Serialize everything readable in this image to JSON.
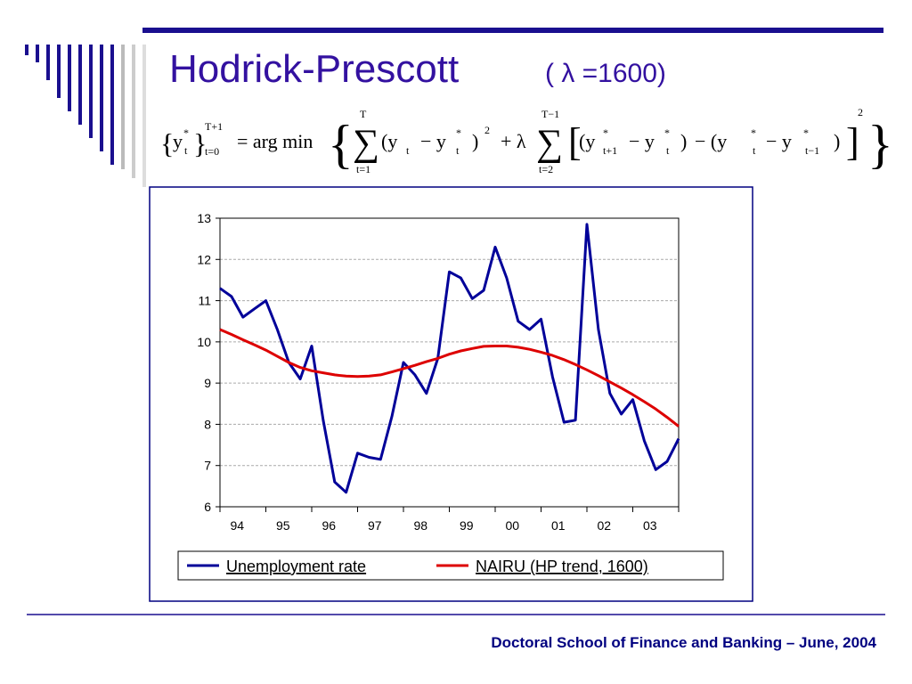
{
  "title": "Hodrick-Prescott",
  "title_param": "( λ =1600)",
  "formula": [
    "{",
    "y",
    "*",
    "t",
    "}",
    "T+1",
    "t=0",
    "= arg min",
    "{",
    "T",
    "∑",
    "t=1",
    "(y",
    "t",
    "− y",
    "*",
    "t",
    ")",
    "2",
    "+ λ",
    "T−1",
    "∑",
    "t=2",
    "[",
    "(y",
    "*",
    "t+1",
    "− y",
    "*",
    "t",
    ")",
    "− (y",
    "*",
    "t",
    "− y",
    "*",
    "t−1",
    ")",
    "]",
    "2",
    "}"
  ],
  "footer": "Doctoral School of Finance and Banking – June, 2004",
  "chart_data": {
    "type": "line",
    "categories": [
      null,
      "94",
      null,
      null,
      null,
      "95",
      null,
      null,
      null,
      "96",
      null,
      null,
      null,
      "97",
      null,
      null,
      null,
      "98",
      null,
      null,
      null,
      "99",
      null,
      null,
      null,
      "00",
      null,
      null,
      null,
      "01",
      null,
      null,
      null,
      "02",
      null,
      null,
      null,
      "03",
      null,
      null,
      null
    ],
    "series": [
      {
        "name": "Unemployment rate",
        "color": "#000099",
        "values": [
          11.3,
          11.1,
          10.6,
          10.8,
          11.0,
          10.3,
          9.5,
          9.1,
          9.9,
          8.1,
          6.6,
          6.35,
          7.3,
          7.2,
          7.15,
          8.2,
          9.5,
          9.2,
          8.75,
          9.6,
          11.7,
          11.55,
          11.05,
          11.25,
          12.3,
          11.55,
          10.5,
          10.3,
          10.55,
          9.15,
          8.05,
          8.1,
          12.85,
          10.3,
          8.75,
          8.25,
          8.6,
          7.6,
          6.9,
          7.1,
          7.65
        ]
      },
      {
        "name": "NAIRU (HP trend, 1600)",
        "color": "#dd0000",
        "values": [
          10.3,
          10.18,
          10.05,
          9.93,
          9.8,
          9.65,
          9.5,
          9.38,
          9.3,
          9.25,
          9.2,
          9.17,
          9.16,
          9.17,
          9.2,
          9.27,
          9.35,
          9.43,
          9.52,
          9.6,
          9.7,
          9.78,
          9.84,
          9.89,
          9.9,
          9.9,
          9.87,
          9.82,
          9.75,
          9.67,
          9.57,
          9.45,
          9.32,
          9.18,
          9.03,
          8.88,
          8.72,
          8.55,
          8.37,
          8.17,
          7.95
        ]
      }
    ],
    "ylim": [
      6,
      13
    ],
    "yticks": [
      6,
      7,
      8,
      9,
      10,
      11,
      12,
      13
    ],
    "grid": true
  }
}
